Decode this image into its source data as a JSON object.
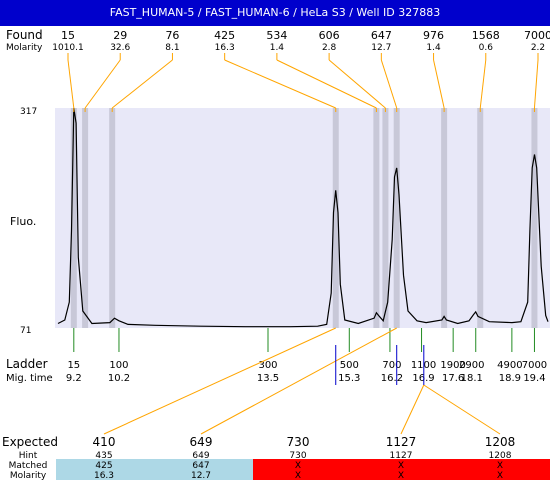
{
  "title": "FAST_HUMAN-5 / FAST_HUMAN-6 / HeLa S3 / Well ID 327883",
  "colors": {
    "title_bg": "#0000cc",
    "plot_bg": "#e8e8f8",
    "band": "#c8c8d8",
    "found_line": "#ffa500",
    "ladder_line": "#228b22",
    "matched_bg": "#add8e6",
    "unmatched_bg": "#ff0000",
    "marker_line": "#0000cc"
  },
  "labels": {
    "found": "Found",
    "molarity": "Molarity",
    "fluo": "Fluo.",
    "ladder": "Ladder",
    "mig_time": "Mig. time",
    "expected": "Expected",
    "hint": "Hint",
    "matched": "Matched",
    "molarity_bottom": "Molarity"
  },
  "chart_data": {
    "type": "line",
    "xlabel": "Mig. time",
    "ylabel": "Fluo.",
    "ylim": [
      71,
      317
    ],
    "xlim": [
      8.85,
      19.7
    ],
    "y_ticks": [
      "317",
      "71"
    ],
    "found": [
      {
        "size": "15",
        "molarity": "1010.1",
        "time": 9.2
      },
      {
        "size": "29",
        "molarity": "32.6",
        "time": 9.45
      },
      {
        "size": "76",
        "molarity": "8.1",
        "time": 10.05
      },
      {
        "size": "425",
        "molarity": "16.3",
        "time": 15.0
      },
      {
        "size": "534",
        "molarity": "1.4",
        "time": 15.9
      },
      {
        "size": "606",
        "molarity": "2.8",
        "time": 16.1
      },
      {
        "size": "647",
        "molarity": "12.7",
        "time": 16.35
      },
      {
        "size": "976",
        "molarity": "1.4",
        "time": 17.4
      },
      {
        "size": "1568",
        "molarity": "0.6",
        "time": 18.2
      },
      {
        "size": "7000",
        "molarity": "2.2",
        "time": 19.4
      }
    ],
    "ladder": [
      {
        "size": "15",
        "time": "9.2",
        "t": 9.2
      },
      {
        "size": "100",
        "time": "10.2",
        "t": 10.2
      },
      {
        "size": "300",
        "time": "13.5",
        "t": 13.5
      },
      {
        "size": "500",
        "time": "15.3",
        "t": 15.3
      },
      {
        "size": "700",
        "time": "16.2",
        "t": 16.2
      },
      {
        "size": "1100",
        "time": "16.9",
        "t": 16.9
      },
      {
        "size": "1900",
        "time": "17.6",
        "t": 17.6
      },
      {
        "size": "2900",
        "time": "18.1",
        "t": 18.1
      },
      {
        "size": "4900",
        "time": "18.9",
        "t": 18.9
      },
      {
        "size": "7000",
        "time": "19.4",
        "t": 19.4
      }
    ],
    "trace": [
      [
        8.85,
        76
      ],
      [
        9.0,
        80
      ],
      [
        9.1,
        100
      ],
      [
        9.15,
        180
      ],
      [
        9.2,
        317
      ],
      [
        9.25,
        300
      ],
      [
        9.3,
        150
      ],
      [
        9.4,
        90
      ],
      [
        9.6,
        76
      ],
      [
        10.0,
        77
      ],
      [
        10.1,
        82
      ],
      [
        10.2,
        79
      ],
      [
        10.4,
        75
      ],
      [
        11.0,
        74
      ],
      [
        12.0,
        73
      ],
      [
        13.0,
        72.5
      ],
      [
        14.0,
        72.5
      ],
      [
        14.6,
        73
      ],
      [
        14.8,
        75
      ],
      [
        14.9,
        110
      ],
      [
        14.95,
        200
      ],
      [
        15.0,
        225
      ],
      [
        15.05,
        200
      ],
      [
        15.1,
        120
      ],
      [
        15.2,
        80
      ],
      [
        15.5,
        76
      ],
      [
        15.85,
        82
      ],
      [
        15.9,
        88
      ],
      [
        15.95,
        85
      ],
      [
        16.05,
        79
      ],
      [
        16.15,
        100
      ],
      [
        16.25,
        170
      ],
      [
        16.3,
        240
      ],
      [
        16.35,
        250
      ],
      [
        16.4,
        220
      ],
      [
        16.5,
        130
      ],
      [
        16.6,
        90
      ],
      [
        16.8,
        79
      ],
      [
        17.0,
        77
      ],
      [
        17.35,
        80
      ],
      [
        17.4,
        84
      ],
      [
        17.45,
        80
      ],
      [
        17.7,
        76
      ],
      [
        17.95,
        79
      ],
      [
        18.05,
        86
      ],
      [
        18.1,
        89
      ],
      [
        18.15,
        84
      ],
      [
        18.4,
        78
      ],
      [
        18.9,
        77
      ],
      [
        19.1,
        78
      ],
      [
        19.25,
        100
      ],
      [
        19.3,
        180
      ],
      [
        19.35,
        250
      ],
      [
        19.4,
        265
      ],
      [
        19.45,
        250
      ],
      [
        19.55,
        140
      ],
      [
        19.65,
        85
      ],
      [
        19.7,
        78
      ]
    ],
    "expected": [
      {
        "expected": "410",
        "hint": "435",
        "matched": "425",
        "molarity": "16.3",
        "match": true
      },
      {
        "expected": "649",
        "hint": "649",
        "matched": "647",
        "molarity": "12.7",
        "match": true
      },
      {
        "expected": "730",
        "hint": "730",
        "matched": "X",
        "molarity": "X",
        "match": false
      },
      {
        "expected": "1127",
        "hint": "1127",
        "matched": "X",
        "molarity": "X",
        "match": false
      },
      {
        "expected": "1208",
        "hint": "1208",
        "matched": "X",
        "molarity": "X",
        "match": false
      }
    ]
  }
}
